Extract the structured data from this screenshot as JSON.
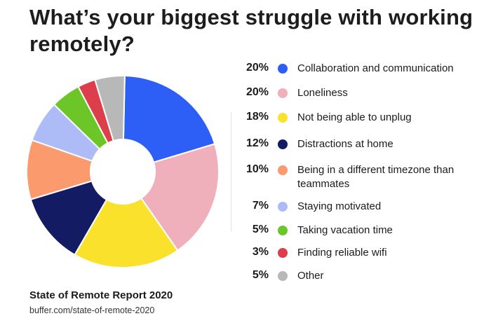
{
  "header": {
    "title": "What’s your biggest struggle with working remotely?"
  },
  "chart_data": {
    "type": "pie",
    "donut": true,
    "legend_position": "right",
    "slices": [
      {
        "label": "Collaboration and communication",
        "value": 20,
        "pct_label": "20%",
        "color": "#2d5ef5"
      },
      {
        "label": "Loneliness",
        "value": 20,
        "pct_label": "20%",
        "color": "#f0b0bb"
      },
      {
        "label": "Not being able to unplug",
        "value": 18,
        "pct_label": "18%",
        "color": "#fae12c"
      },
      {
        "label": "Distractions at home",
        "value": 12,
        "pct_label": "12%",
        "color": "#131c62"
      },
      {
        "label": "Being in a different timezone than teammates",
        "value": 10,
        "pct_label": "10%",
        "color": "#fb9a6c"
      },
      {
        "label": "Staying motivated",
        "value": 7,
        "pct_label": "7%",
        "color": "#adbcf7"
      },
      {
        "label": "Taking vacation time",
        "value": 5,
        "pct_label": "5%",
        "color": "#6cc628"
      },
      {
        "label": "Finding reliable wifi",
        "value": 3,
        "pct_label": "3%",
        "color": "#dc3e4c"
      },
      {
        "label": "Other",
        "value": 5,
        "pct_label": "5%",
        "color": "#b8b8b8"
      }
    ]
  },
  "source": {
    "title": "State of Remote Report 2020",
    "url": "buffer.com/state-of-remote-2020"
  }
}
